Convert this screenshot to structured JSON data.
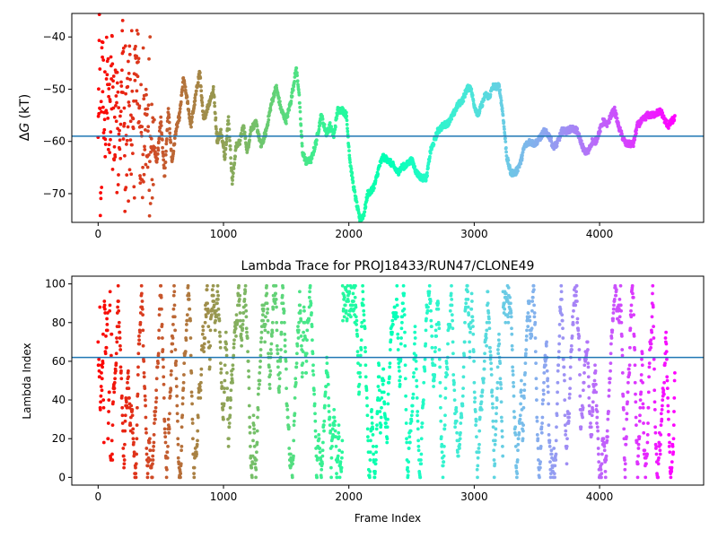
{
  "chart_data": [
    {
      "type": "scatter",
      "title": "",
      "xlabel": "",
      "ylabel": "ΔG (kT)",
      "ylabel_parts": {
        "delta": "Δ",
        "symbol": "G",
        "unit": " (kT)"
      },
      "xlim": [
        -210,
        4830
      ],
      "ylim": [
        -75.5,
        -35.5
      ],
      "xticks": [
        0,
        1000,
        2000,
        3000,
        4000
      ],
      "yticks": [
        -70,
        -60,
        -50,
        -40
      ],
      "hline": -59.0,
      "grid": false,
      "legend": "none",
      "color_encoding": "rainbow colormap by frame index (red at frame 0 to violet at the last frame)",
      "x_max_frame": 4600,
      "marker_size": 3,
      "hline_color": "#1f77b4",
      "trace": [
        [
          0,
          -62
        ],
        [
          10,
          -40
        ],
        [
          20,
          -74
        ],
        [
          30,
          -38.8
        ],
        [
          40,
          -50
        ],
        [
          55,
          -55
        ],
        [
          70,
          -45
        ],
        [
          90,
          -58
        ],
        [
          110,
          -43.5
        ],
        [
          130,
          -60
        ],
        [
          150,
          -47
        ],
        [
          165,
          -68
        ],
        [
          180,
          -55
        ],
        [
          200,
          -41
        ],
        [
          215,
          -72
        ],
        [
          230,
          -57
        ],
        [
          250,
          -44
        ],
        [
          270,
          -66
        ],
        [
          290,
          -52
        ],
        [
          310,
          -41.5
        ],
        [
          330,
          -58
        ],
        [
          350,
          -63
        ],
        [
          380,
          -56
        ],
        [
          410,
          -69
        ],
        [
          440,
          -60
        ],
        [
          470,
          -64
        ],
        [
          500,
          -55.5
        ],
        [
          530,
          -67
        ],
        [
          560,
          -54
        ],
        [
          590,
          -64
        ],
        [
          620,
          -58
        ],
        [
          650,
          -55
        ],
        [
          680,
          -48
        ],
        [
          710,
          -52
        ],
        [
          740,
          -57
        ],
        [
          780,
          -51
        ],
        [
          810,
          -46.5
        ],
        [
          840,
          -56
        ],
        [
          880,
          -53
        ],
        [
          920,
          -50
        ],
        [
          950,
          -60
        ],
        [
          980,
          -58
        ],
        [
          1010,
          -63
        ],
        [
          1040,
          -55.5
        ],
        [
          1070,
          -67.8
        ],
        [
          1100,
          -61
        ],
        [
          1130,
          -60
        ],
        [
          1160,
          -57
        ],
        [
          1190,
          -62
        ],
        [
          1220,
          -57.5
        ],
        [
          1260,
          -56.5
        ],
        [
          1300,
          -61
        ],
        [
          1340,
          -58
        ],
        [
          1380,
          -53
        ],
        [
          1420,
          -49.5
        ],
        [
          1460,
          -54
        ],
        [
          1500,
          -56
        ],
        [
          1540,
          -52
        ],
        [
          1580,
          -46
        ],
        [
          1600,
          -50
        ],
        [
          1630,
          -62
        ],
        [
          1660,
          -64
        ],
        [
          1700,
          -63.5
        ],
        [
          1740,
          -60
        ],
        [
          1780,
          -55
        ],
        [
          1820,
          -58.5
        ],
        [
          1850,
          -57
        ],
        [
          1880,
          -59
        ],
        [
          1910,
          -54
        ],
        [
          1950,
          -54
        ],
        [
          1980,
          -55
        ],
        [
          2010,
          -64
        ],
        [
          2040,
          -69
        ],
        [
          2070,
          -73
        ],
        [
          2090,
          -75
        ],
        [
          2120,
          -74
        ],
        [
          2150,
          -70
        ],
        [
          2180,
          -69.5
        ],
        [
          2210,
          -68
        ],
        [
          2240,
          -65
        ],
        [
          2270,
          -63
        ],
        [
          2310,
          -63.5
        ],
        [
          2350,
          -64.5
        ],
        [
          2390,
          -66
        ],
        [
          2420,
          -65
        ],
        [
          2460,
          -64.5
        ],
        [
          2500,
          -63.5
        ],
        [
          2540,
          -66
        ],
        [
          2580,
          -67
        ],
        [
          2620,
          -67
        ],
        [
          2650,
          -62
        ],
        [
          2680,
          -60
        ],
        [
          2710,
          -58
        ],
        [
          2750,
          -57
        ],
        [
          2790,
          -56.5
        ],
        [
          2830,
          -55
        ],
        [
          2870,
          -53
        ],
        [
          2910,
          -52
        ],
        [
          2940,
          -50
        ],
        [
          2970,
          -49.5
        ],
        [
          3000,
          -53
        ],
        [
          3030,
          -55
        ],
        [
          3060,
          -53
        ],
        [
          3090,
          -51
        ],
        [
          3120,
          -51.5
        ],
        [
          3150,
          -49.5
        ],
        [
          3200,
          -49.5
        ],
        [
          3230,
          -55
        ],
        [
          3260,
          -63
        ],
        [
          3290,
          -66
        ],
        [
          3330,
          -66
        ],
        [
          3370,
          -64
        ],
        [
          3400,
          -61
        ],
        [
          3440,
          -60
        ],
        [
          3480,
          -60.5
        ],
        [
          3520,
          -59.5
        ],
        [
          3560,
          -58
        ],
        [
          3600,
          -59
        ],
        [
          3630,
          -61
        ],
        [
          3660,
          -60.5
        ],
        [
          3700,
          -58
        ],
        [
          3740,
          -58
        ],
        [
          3780,
          -57.5
        ],
        [
          3820,
          -58
        ],
        [
          3850,
          -60
        ],
        [
          3880,
          -62
        ],
        [
          3910,
          -62
        ],
        [
          3940,
          -60
        ],
        [
          3970,
          -60
        ],
        [
          4000,
          -58
        ],
        [
          4030,
          -56
        ],
        [
          4060,
          -57
        ],
        [
          4090,
          -55
        ],
        [
          4120,
          -54
        ],
        [
          4150,
          -57
        ],
        [
          4180,
          -59
        ],
        [
          4210,
          -60.5
        ],
        [
          4240,
          -60.5
        ],
        [
          4270,
          -60.5
        ],
        [
          4300,
          -57
        ],
        [
          4340,
          -56
        ],
        [
          4380,
          -55
        ],
        [
          4420,
          -55
        ],
        [
          4460,
          -54.5
        ],
        [
          4490,
          -54.2
        ],
        [
          4520,
          -56
        ],
        [
          4550,
          -57
        ],
        [
          4580,
          -56
        ],
        [
          4600,
          -55.5
        ]
      ],
      "series": [
        {
          "values": "dense per-frame trace (about 2500 points) following the trace above; scattered widely over -75 to -38 for frames 0-450, then a nearly continuous path"
        }
      ]
    },
    {
      "type": "scatter",
      "title": "Lambda Trace for PROJ18433/RUN47/CLONE49",
      "xlabel": "Frame Index",
      "ylabel": "Lambda Index",
      "xlim": [
        -210,
        4830
      ],
      "ylim": [
        -4,
        104
      ],
      "xticks": [
        0,
        1000,
        2000,
        3000,
        4000
      ],
      "yticks": [
        0,
        20,
        40,
        60,
        80,
        100
      ],
      "hline": 62,
      "grid": false,
      "legend": "none",
      "color_encoding": "rainbow colormap by frame index (red at frame 0 to violet at the last frame)",
      "x_max_frame": 4600,
      "value_range": [
        0,
        99
      ],
      "marker_size": 3,
      "hline_color": "#1f77b4",
      "series": [
        {
          "values": "about 2500 points, roughly one every 2 frames, each an integer lambda index between 0 and 99; the walker sweeps the full 0-99 range repeatedly, with dense clusters near 80-99 around frames 1950-2050, 3230-3290 and 4130-4170"
        }
      ]
    }
  ]
}
